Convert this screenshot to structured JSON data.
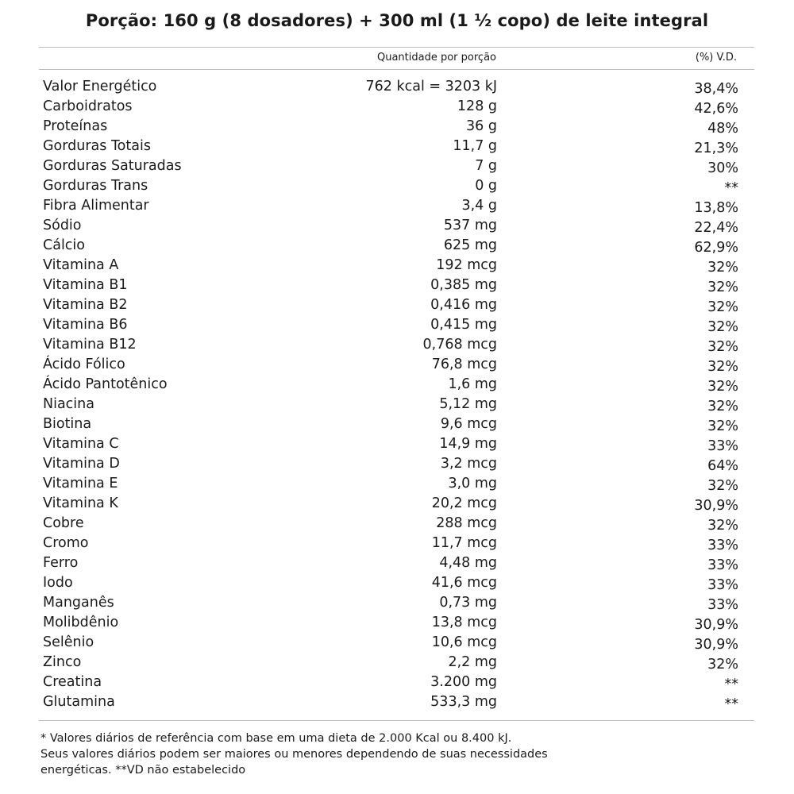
{
  "title": "Porção: 160 g (8 dosadores) + 300 ml (1 ½ copo) de leite integral",
  "header": {
    "quantity": "Quantidade por porção",
    "vd": "(%) V.D."
  },
  "rows": [
    {
      "name": "Valor Energético",
      "qty": "762 kcal = 3203 kJ",
      "vd": "38,4%"
    },
    {
      "name": "Carboidratos",
      "qty": "128 g",
      "vd": "42,6%"
    },
    {
      "name": "Proteínas",
      "qty": "36 g",
      "vd": "48%"
    },
    {
      "name": "Gorduras Totais",
      "qty": "11,7 g",
      "vd": "21,3%"
    },
    {
      "name": "Gorduras Saturadas",
      "qty": "7 g",
      "vd": "30%"
    },
    {
      "name": "Gorduras Trans",
      "qty": "0 g",
      "vd": "**"
    },
    {
      "name": "Fibra Alimentar",
      "qty": "3,4 g",
      "vd": "13,8%"
    },
    {
      "name": "Sódio",
      "qty": "537 mg",
      "vd": "22,4%"
    },
    {
      "name": "Cálcio",
      "qty": "625 mg",
      "vd": "62,9%"
    },
    {
      "name": "Vitamina A",
      "qty": "192 mcg",
      "vd": "32%"
    },
    {
      "name": "Vitamina B1",
      "qty": "0,385 mg",
      "vd": "32%"
    },
    {
      "name": "Vitamina B2",
      "qty": "0,416 mg",
      "vd": "32%"
    },
    {
      "name": "Vitamina B6",
      "qty": "0,415 mg",
      "vd": "32%"
    },
    {
      "name": "Vitamina B12",
      "qty": "0,768 mcg",
      "vd": "32%"
    },
    {
      "name": "Ácido Fólico",
      "qty": "76,8 mcg",
      "vd": "32%"
    },
    {
      "name": "Ácido Pantotênico",
      "qty": "1,6 mg",
      "vd": "32%"
    },
    {
      "name": "Niacina",
      "qty": "5,12 mg",
      "vd": "32%"
    },
    {
      "name": "Biotina",
      "qty": "9,6 mcg",
      "vd": "32%"
    },
    {
      "name": "Vitamina C",
      "qty": "14,9 mg",
      "vd": "33%"
    },
    {
      "name": "Vitamina D",
      "qty": "3,2 mcg",
      "vd": "64%"
    },
    {
      "name": "Vitamina E",
      "qty": "3,0 mg",
      "vd": "32%"
    },
    {
      "name": "Vitamina K",
      "qty": "20,2 mcg",
      "vd": "30,9%"
    },
    {
      "name": "Cobre",
      "qty": "288 mcg",
      "vd": "32%"
    },
    {
      "name": "Cromo",
      "qty": "11,7 mcg",
      "vd": "33%"
    },
    {
      "name": "Ferro",
      "qty": "4,48 mg",
      "vd": "33%"
    },
    {
      "name": "Iodo",
      "qty": "41,6 mcg",
      "vd": "33%"
    },
    {
      "name": "Manganês",
      "qty": "0,73 mg",
      "vd": "33%"
    },
    {
      "name": "Molibdênio",
      "qty": "13,8 mcg",
      "vd": "30,9%"
    },
    {
      "name": "Selênio",
      "qty": "10,6 mcg",
      "vd": "30,9%"
    },
    {
      "name": "Zinco",
      "qty": "2,2 mg",
      "vd": "32%"
    },
    {
      "name": "Creatina",
      "qty": "3.200 mg",
      "vd": "**"
    },
    {
      "name": "Glutamina",
      "qty": "533,3 mg",
      "vd": "**"
    }
  ],
  "footnote": {
    "line1": "* Valores diários de referência com base em uma dieta de 2.000 Kcal ou 8.400 kJ.",
    "line2": "Seus valores diários podem ser maiores ou menores dependendo de suas necessidades",
    "line3": "energéticas.  **VD não estabelecido"
  }
}
